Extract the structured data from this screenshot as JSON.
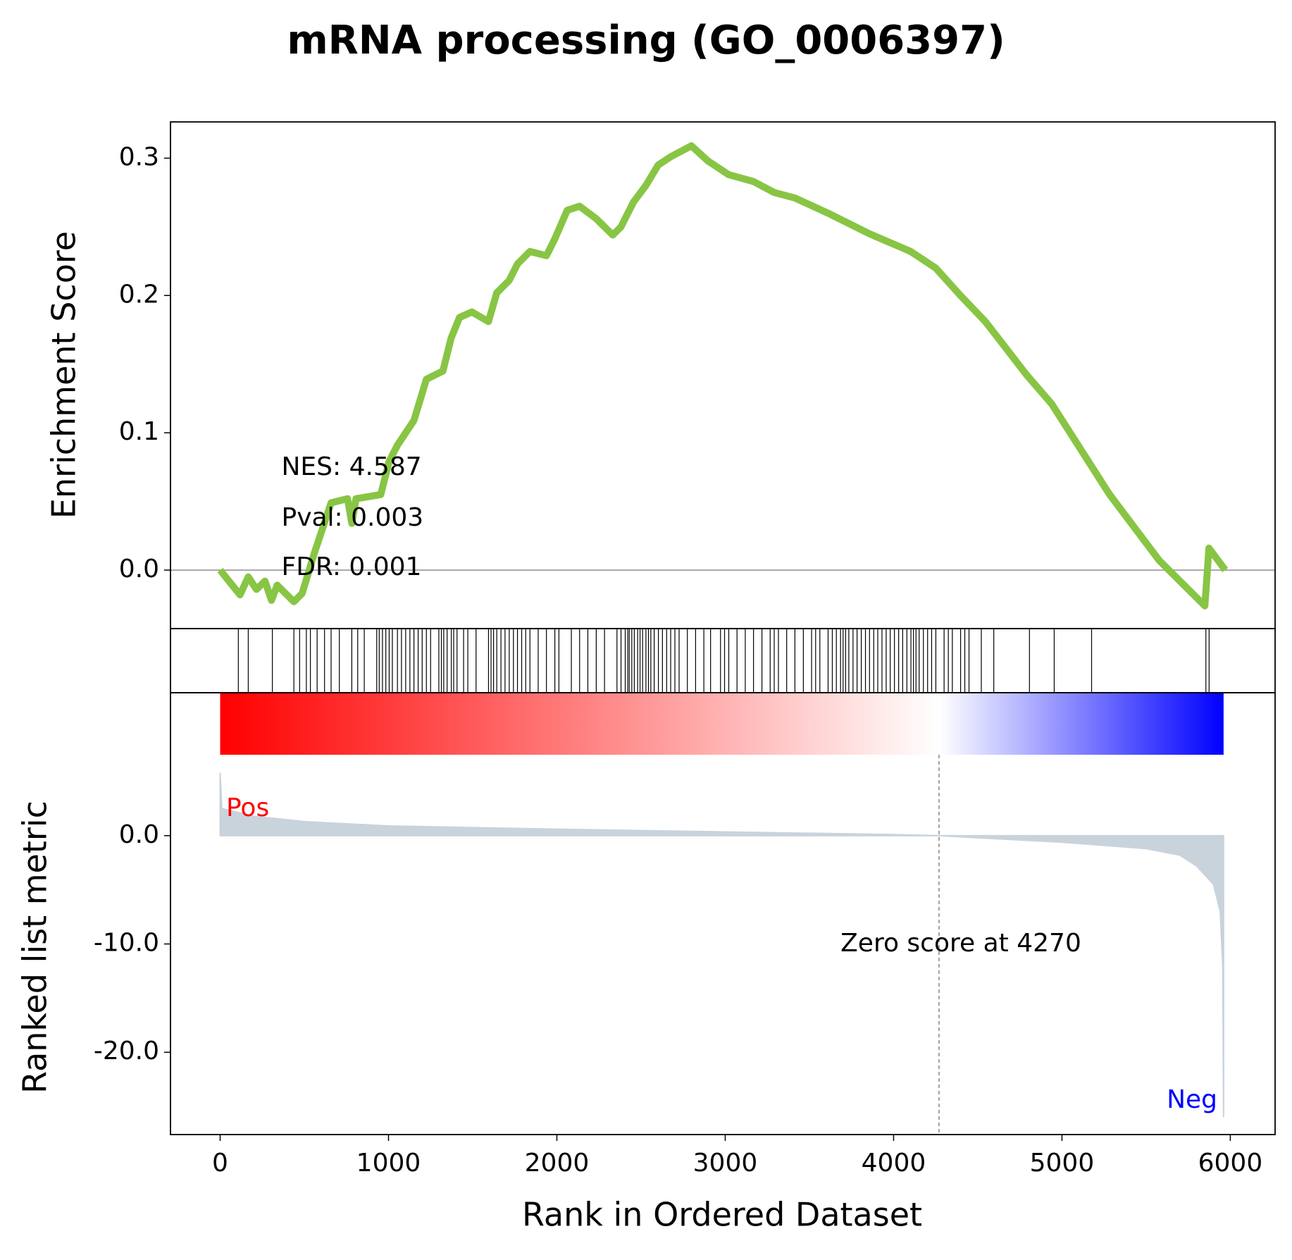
{
  "chart_data": [
    {
      "type": "line",
      "title": "mRNA processing (GO_0006397)",
      "ylabel": "Enrichment Score",
      "color": "#88c544",
      "xlim": [
        -295,
        6266
      ],
      "ylim": [
        -0.0426,
        0.3264
      ],
      "yticks": [
        {
          "value": 0,
          "label": "0.0"
        },
        0.1,
        0.2,
        0.3
      ],
      "annotations": [
        "NES: 4.587",
        "Pval: 0.003",
        "FDR: 0.001"
      ],
      "x": [
        0,
        118,
        167,
        216,
        266,
        305,
        339,
        413,
        438,
        487,
        561,
        610,
        659,
        757,
        782,
        807,
        954,
        1003,
        1053,
        1151,
        1225,
        1323,
        1372,
        1422,
        1495,
        1594,
        1643,
        1717,
        1766,
        1840,
        1938,
        1987,
        2061,
        2135,
        2233,
        2332,
        2381,
        2455,
        2528,
        2602,
        2676,
        2799,
        2897,
        3020,
        3168,
        3291,
        3414,
        3610,
        3856,
        4102,
        4250,
        4397,
        4545,
        4791,
        4939,
        5283,
        5578,
        5849,
        5873,
        5970
      ],
      "values": [
        0,
        -0.018,
        -0.005,
        -0.014,
        -0.008,
        -0.022,
        -0.011,
        -0.02,
        -0.023,
        -0.017,
        0.013,
        0.031,
        0.049,
        0.052,
        0.034,
        0.052,
        0.055,
        0.079,
        0.091,
        0.109,
        0.139,
        0.145,
        0.169,
        0.184,
        0.188,
        0.181,
        0.202,
        0.211,
        0.223,
        0.232,
        0.229,
        0.241,
        0.262,
        0.265,
        0.256,
        0.244,
        0.25,
        0.268,
        0.28,
        0.295,
        0.301,
        0.309,
        0.298,
        0.288,
        0.283,
        0.275,
        0.271,
        0.26,
        0.245,
        0.232,
        0.22,
        0.2,
        0.181,
        0.142,
        0.121,
        0.055,
        0.007,
        -0.026,
        0.016,
        0
      ]
    },
    {
      "type": "rug",
      "xlim": [
        -295,
        6266
      ],
      "x": [
        108,
        167,
        310,
        438,
        472,
        512,
        536,
        576,
        620,
        659,
        708,
        782,
        817,
        856,
        930,
        945,
        964,
        984,
        1004,
        1023,
        1053,
        1077,
        1102,
        1127,
        1151,
        1176,
        1200,
        1225,
        1250,
        1299,
        1314,
        1328,
        1348,
        1373,
        1387,
        1407,
        1446,
        1471,
        1520,
        1594,
        1609,
        1624,
        1643,
        1668,
        1692,
        1717,
        1742,
        1766,
        1791,
        1815,
        1840,
        1889,
        1938,
        1988,
        2012,
        2086,
        2135,
        2184,
        2234,
        2283,
        2357,
        2381,
        2406,
        2421,
        2430,
        2445,
        2460,
        2480,
        2494,
        2509,
        2529,
        2544,
        2558,
        2578,
        2603,
        2627,
        2652,
        2676,
        2701,
        2726,
        2775,
        2824,
        2873,
        2913,
        2972,
        2996,
        3021,
        3070,
        3119,
        3168,
        3218,
        3267,
        3291,
        3316,
        3365,
        3414,
        3464,
        3513,
        3537,
        3562,
        3611,
        3636,
        3660,
        3685,
        3700,
        3715,
        3734,
        3759,
        3783,
        3808,
        3833,
        3857,
        3882,
        3906,
        3931,
        3956,
        3980,
        4005,
        4030,
        4054,
        4079,
        4103,
        4118,
        4133,
        4152,
        4177,
        4202,
        4226,
        4251,
        4300,
        4325,
        4349,
        4398,
        4423,
        4448,
        4521,
        4595,
        4807,
        4954,
        5176,
        5855,
        5874
      ]
    },
    {
      "type": "area",
      "ylabel": "Ranked list metric",
      "xlabel": "Rank in Ordered Dataset",
      "color": "#c9d3dc",
      "colorbar": [
        "#ff0000",
        "#ffffff",
        "#0000ff"
      ],
      "xlim": [
        -295,
        6266
      ],
      "ylim": [
        -27.6,
        13.2
      ],
      "xticks": [
        0,
        1000,
        2000,
        3000,
        4000,
        5000,
        6000
      ],
      "yticks": [
        {
          "value": 0,
          "label": "0.0"
        },
        {
          "value": -10,
          "label": "-10.0"
        },
        {
          "value": -20,
          "label": "-20.0"
        }
      ],
      "zero_score": 4270,
      "annotations": [
        "Pos",
        "Neg",
        "Zero score at 4270"
      ],
      "x": [
        0,
        10,
        200,
        500,
        1000,
        2000,
        3000,
        4000,
        4270,
        4500,
        5000,
        5500,
        5700,
        5800,
        5900,
        5940,
        5955,
        5960
      ],
      "values": [
        5.8,
        2.5,
        1.8,
        1.3,
        0.9,
        0.6,
        0.35,
        0.1,
        0,
        -0.2,
        -0.6,
        -1.2,
        -1.8,
        -2.8,
        -4.5,
        -7,
        -12,
        -26
      ]
    }
  ]
}
